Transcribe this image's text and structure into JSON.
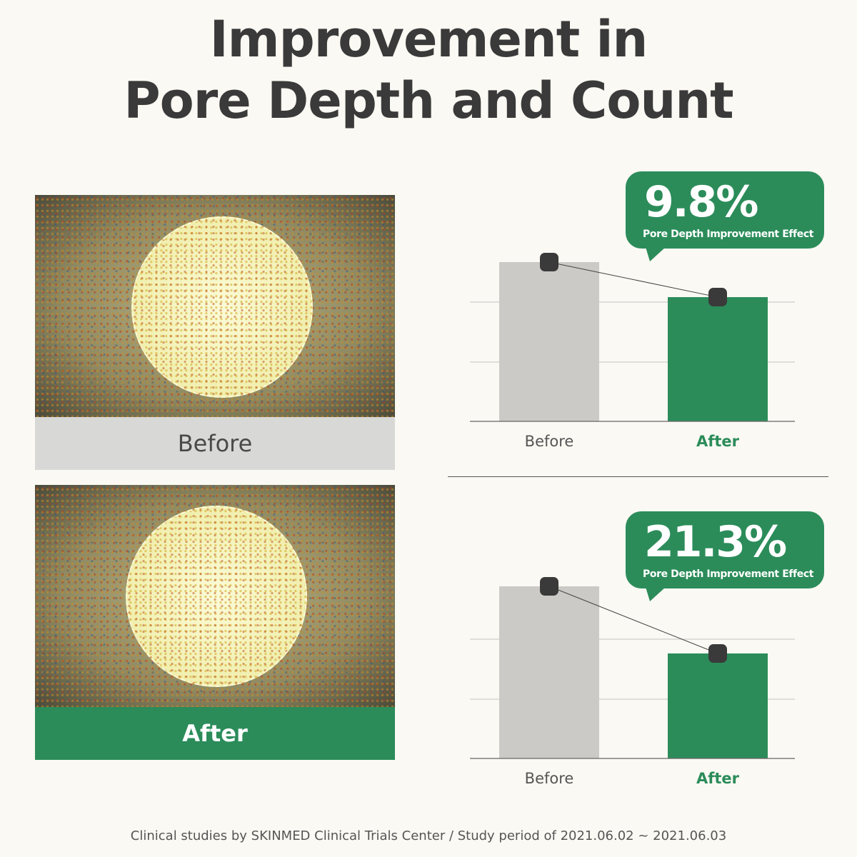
{
  "title": {
    "line1": "Improvement in",
    "line2": "Pore Depth and Count"
  },
  "photos": [
    {
      "label": "Before"
    },
    {
      "label": "After"
    }
  ],
  "colors": {
    "before_bar": "#cbcac6",
    "after_bar": "#2b8c5a",
    "marker": "#3a3a3a",
    "accent": "#2b8c5a"
  },
  "chart_data": [
    {
      "type": "bar",
      "categories": [
        "Before",
        "After"
      ],
      "values": [
        100,
        78
      ],
      "value_scale": "relative (no axis printed)",
      "ylim": [
        0,
        100
      ],
      "grid": true,
      "annotation": {
        "value": "9.8%",
        "caption": "Pore Depth Improvement Effect"
      }
    },
    {
      "type": "bar",
      "categories": [
        "Before",
        "After"
      ],
      "values": [
        100,
        61
      ],
      "value_scale": "relative (no axis printed)",
      "ylim": [
        0,
        100
      ],
      "grid": true,
      "annotation": {
        "value": "21.3%",
        "caption": "Pore Depth Improvement Effect"
      }
    }
  ],
  "footer": "Clinical studies by SKINMED Clinical Trials Center / Study period of 2021.06.02 ~ 2021.06.03"
}
